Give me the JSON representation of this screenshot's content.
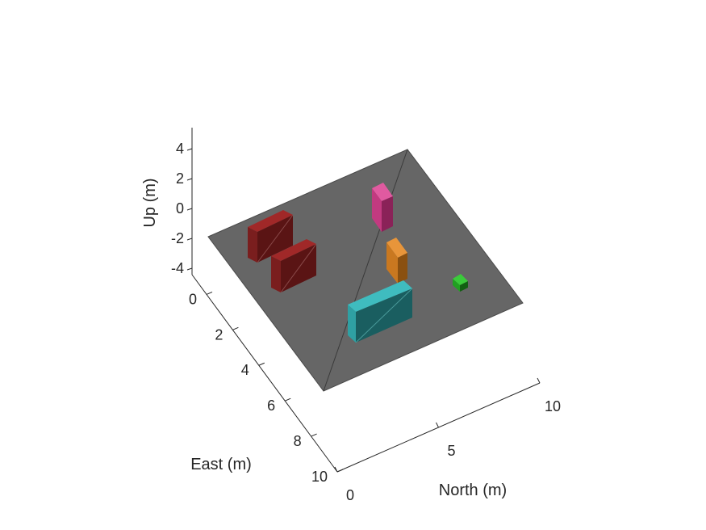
{
  "chart_data": {
    "type": "3d-scene",
    "axes": {
      "north": {
        "label": "North (m)",
        "ticks": [
          {
            "v": 0,
            "t": "0"
          },
          {
            "v": 5,
            "t": "5"
          },
          {
            "v": 10,
            "t": "10"
          }
        ],
        "range": [
          0,
          10
        ]
      },
      "east": {
        "label": "East (m)",
        "ticks": [
          {
            "v": 0,
            "t": "0"
          },
          {
            "v": 2,
            "t": "2"
          },
          {
            "v": 4,
            "t": "4"
          },
          {
            "v": 6,
            "t": "6"
          },
          {
            "v": 8,
            "t": "8"
          },
          {
            "v": 10,
            "t": "10"
          }
        ],
        "range": [
          0,
          10
        ]
      },
      "up": {
        "label": "Up (m)",
        "ticks": [
          {
            "v": 4,
            "t": "4"
          },
          {
            "v": 2,
            "t": "2"
          },
          {
            "v": 0,
            "t": "0"
          },
          {
            "v": -2,
            "t": "-2"
          },
          {
            "v": -4,
            "t": "-4"
          }
        ],
        "range": [
          -4,
          4
        ]
      }
    },
    "ground_plane": {
      "color": "#666666"
    },
    "obstacles": [
      {
        "name": "red-box-1",
        "color": "#6b1818"
      },
      {
        "name": "red-box-2",
        "color": "#6b1818"
      },
      {
        "name": "magenta-box",
        "color": "#b0306f"
      },
      {
        "name": "orange-box",
        "color": "#b86a1c"
      },
      {
        "name": "cyan-box",
        "color": "#1e6d6f"
      },
      {
        "name": "green-box",
        "color": "#1c7a1c"
      }
    ]
  }
}
